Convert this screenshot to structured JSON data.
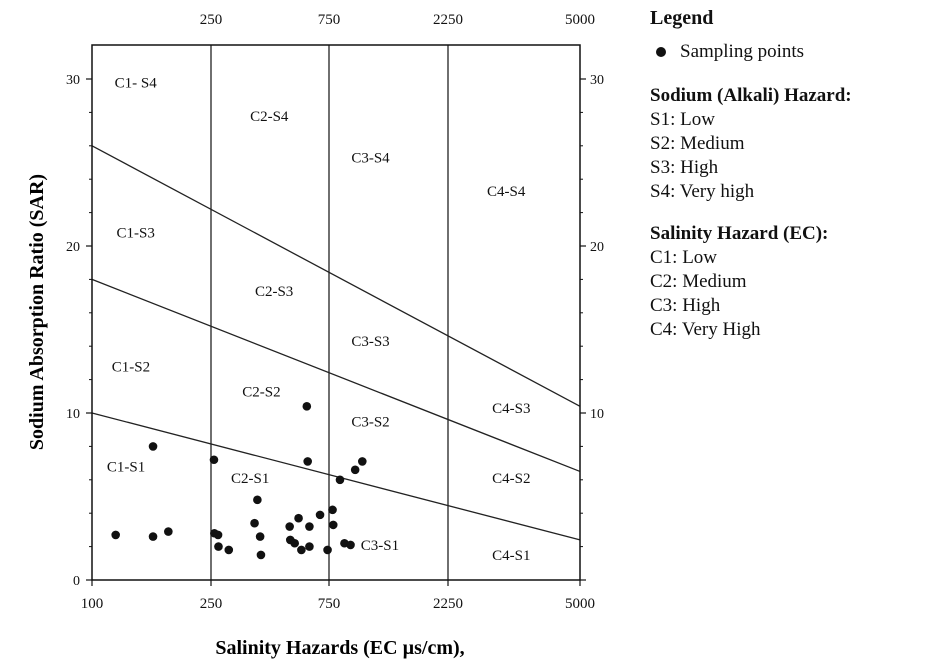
{
  "chart_data": {
    "type": "scatter",
    "xlabel": "Salinity Hazards (EC µs/cm),",
    "ylabel": "Sodium Absorption Ratio (SAR)",
    "x_scale": "log",
    "xlim": [
      100,
      5000
    ],
    "ylim": [
      0,
      32
    ],
    "x_ticks_bottom": [
      "100",
      "250",
      "750",
      "2250",
      "5000"
    ],
    "x_ticks_top": [
      "250",
      "750",
      "2250",
      "5000"
    ],
    "y_ticks": [
      "0",
      "10",
      "20",
      "30"
    ],
    "boundaries_ec": [
      250,
      750,
      2250
    ],
    "sar_lines": [
      {
        "sar_at_100": 10,
        "sar_at_5000": 2.4
      },
      {
        "sar_at_100": 18,
        "sar_at_5000": 6.5
      },
      {
        "sar_at_100": 26,
        "sar_at_5000": 10.4
      }
    ],
    "zones": [
      {
        "label": "C1- S4",
        "ec": 140,
        "sar": 29.5
      },
      {
        "label": "C2-S4",
        "ec": 430,
        "sar": 27.5
      },
      {
        "label": "C3-S4",
        "ec": 1100,
        "sar": 25
      },
      {
        "label": "C4-S4",
        "ec": 3200,
        "sar": 23
      },
      {
        "label": "C1-S3",
        "ec": 140,
        "sar": 20.5
      },
      {
        "label": "C2-S3",
        "ec": 450,
        "sar": 17
      },
      {
        "label": "C3-S3",
        "ec": 1100,
        "sar": 14
      },
      {
        "label": "C4-S3",
        "ec": 3300,
        "sar": 10
      },
      {
        "label": "C1-S2",
        "ec": 135,
        "sar": 12.5
      },
      {
        "label": "C2-S2",
        "ec": 400,
        "sar": 11
      },
      {
        "label": "C3-S2",
        "ec": 1100,
        "sar": 9.2
      },
      {
        "label": "C4-S2",
        "ec": 3300,
        "sar": 5.8
      },
      {
        "label": "C1-S1",
        "ec": 130,
        "sar": 6.5
      },
      {
        "label": "C2-S1",
        "ec": 360,
        "sar": 5.8
      },
      {
        "label": "C3-S1",
        "ec": 1200,
        "sar": 1.8
      },
      {
        "label": "C4-S1",
        "ec": 3300,
        "sar": 1.2
      }
    ],
    "points": [
      {
        "x": 120,
        "y": 2.7
      },
      {
        "x": 160,
        "y": 2.6
      },
      {
        "x": 180,
        "y": 2.9
      },
      {
        "x": 160,
        "y": 8.0
      },
      {
        "x": 257,
        "y": 7.2
      },
      {
        "x": 258,
        "y": 2.8
      },
      {
        "x": 267,
        "y": 2.7
      },
      {
        "x": 268,
        "y": 2.0
      },
      {
        "x": 295,
        "y": 1.8
      },
      {
        "x": 375,
        "y": 3.4
      },
      {
        "x": 385,
        "y": 4.8
      },
      {
        "x": 395,
        "y": 2.6
      },
      {
        "x": 398,
        "y": 1.5
      },
      {
        "x": 520,
        "y": 3.2
      },
      {
        "x": 523,
        "y": 2.4
      },
      {
        "x": 545,
        "y": 2.2
      },
      {
        "x": 565,
        "y": 3.7
      },
      {
        "x": 580,
        "y": 1.8
      },
      {
        "x": 610,
        "y": 10.4
      },
      {
        "x": 615,
        "y": 7.1
      },
      {
        "x": 625,
        "y": 2.0
      },
      {
        "x": 625,
        "y": 3.2
      },
      {
        "x": 690,
        "y": 3.9
      },
      {
        "x": 740,
        "y": 1.8
      },
      {
        "x": 775,
        "y": 4.2
      },
      {
        "x": 780,
        "y": 3.3
      },
      {
        "x": 830,
        "y": 6.0
      },
      {
        "x": 865,
        "y": 2.2
      },
      {
        "x": 915,
        "y": 2.1
      },
      {
        "x": 955,
        "y": 6.6
      },
      {
        "x": 1020,
        "y": 7.1
      }
    ]
  },
  "legend": {
    "title": "Legend",
    "point_label": "Sampling points",
    "sodium_heading": "Sodium (Alkali) Hazard:",
    "sodium_items": [
      "S1: Low",
      "S2: Medium",
      "S3: High",
      "S4: Very high"
    ],
    "salinity_heading": "Salinity Hazard (EC):",
    "salinity_items": [
      "C1: Low",
      "C2: Medium",
      "C3: High",
      "C4: Very High"
    ]
  }
}
